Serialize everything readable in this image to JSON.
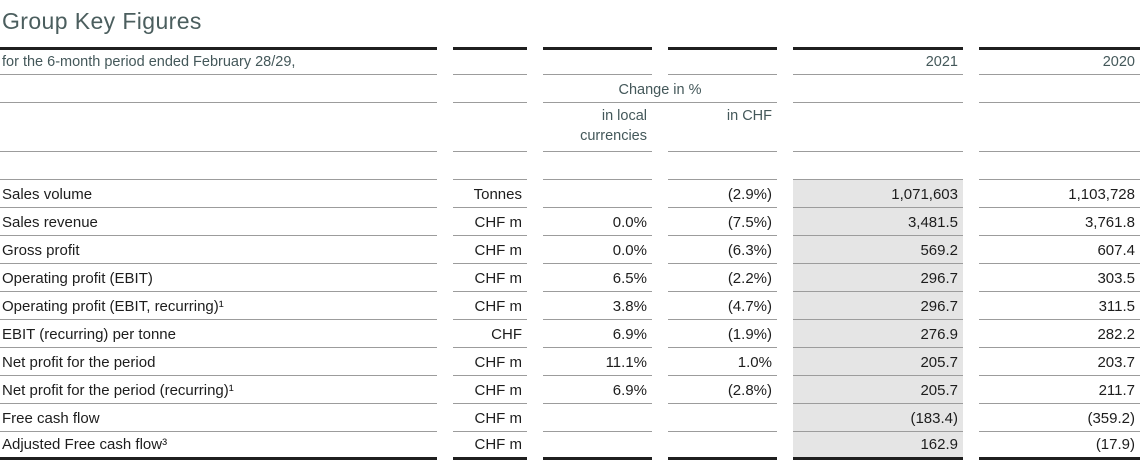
{
  "title": "Group Key Figures",
  "colors": {
    "accent_teal": "#44585a",
    "rule_gray": "#9c9c9c",
    "rule_black": "#1f1f1f",
    "highlight_2021": "#e5e5e5"
  },
  "header": {
    "period_label": "for the 6-month period ended February 28/29,",
    "year_2021": "2021",
    "year_2020": "2020",
    "change_label": "Change in %",
    "local_label": "in local currencies",
    "chf_label": "in CHF"
  },
  "rows": [
    {
      "label": "Sales volume",
      "unit": "Tonnes",
      "local": "",
      "chf": "(2.9%)",
      "y2021": "1,071,603",
      "y2020": "1,103,728"
    },
    {
      "label": "Sales revenue",
      "unit": "CHF m",
      "local": "0.0%",
      "chf": "(7.5%)",
      "y2021": "3,481.5",
      "y2020": "3,761.8"
    },
    {
      "label": "Gross profit",
      "unit": "CHF m",
      "local": "0.0%",
      "chf": "(6.3%)",
      "y2021": "569.2",
      "y2020": "607.4"
    },
    {
      "label": "Operating profit (EBIT)",
      "unit": "CHF m",
      "local": "6.5%",
      "chf": "(2.2%)",
      "y2021": "296.7",
      "y2020": "303.5"
    },
    {
      "label": "Operating profit (EBIT, recurring)¹",
      "unit": "CHF m",
      "local": "3.8%",
      "chf": "(4.7%)",
      "y2021": "296.7",
      "y2020": "311.5"
    },
    {
      "label": "EBIT (recurring) per tonne",
      "unit": "CHF",
      "local": "6.9%",
      "chf": "(1.9%)",
      "y2021": "276.9",
      "y2020": "282.2"
    },
    {
      "label": "Net profit for the period",
      "unit": "CHF m",
      "local": "11.1%",
      "chf": "1.0%",
      "y2021": "205.7",
      "y2020": "203.7"
    },
    {
      "label": "Net profit for the period (recurring)¹",
      "unit": "CHF m",
      "local": "6.9%",
      "chf": "(2.8%)",
      "y2021": "205.7",
      "y2020": "211.7"
    },
    {
      "label": "Free cash flow",
      "unit": "CHF m",
      "local": "",
      "chf": "",
      "y2021": "(183.4)",
      "y2020": "(359.2)"
    },
    {
      "label": "Adjusted Free cash flow³",
      "unit": "CHF m",
      "local": "",
      "chf": "",
      "y2021": "162.9",
      "y2020": "(17.9)"
    }
  ]
}
